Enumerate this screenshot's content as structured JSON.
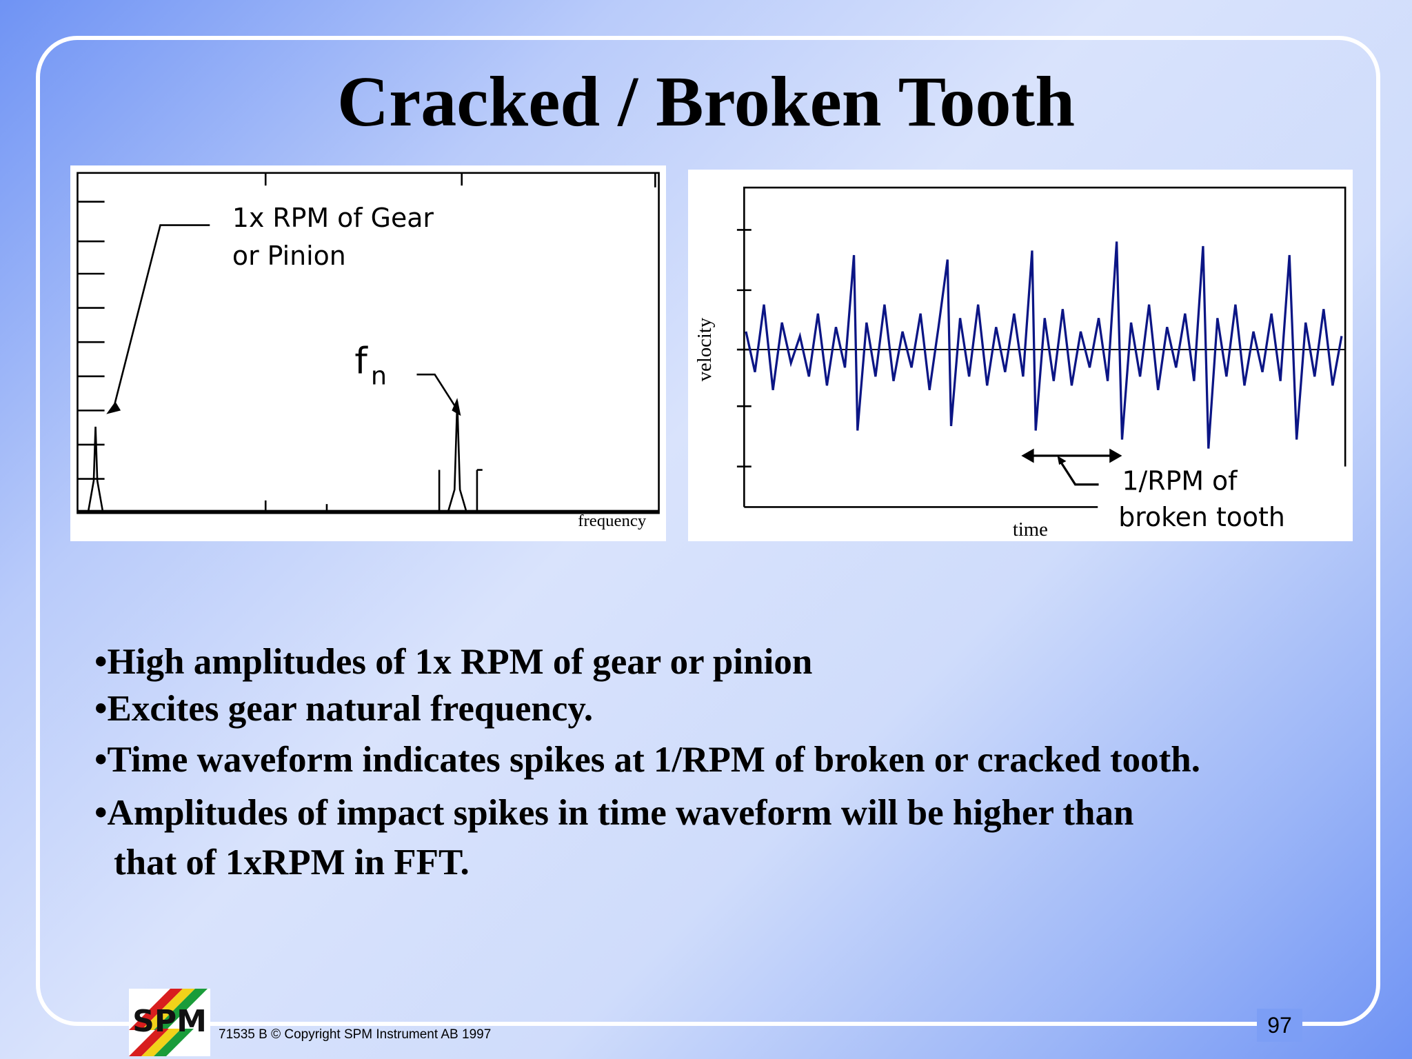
{
  "title": "Cracked / Broken Tooth",
  "figures": [
    {
      "annotations": [
        "1x RPM of Gear",
        "or Pinion"
      ],
      "peak_label": "f",
      "peak_label_subscript": "n",
      "x_axis_label": "frequency"
    },
    {
      "y_axis_label": "velocity",
      "x_axis_label": "time",
      "annotations": [
        "1/RPM of",
        "broken tooth"
      ]
    }
  ],
  "bullets": [
    [
      "•High amplitudes of 1x RPM of gear or pinion"
    ],
    [
      "•Excites gear natural frequency."
    ],
    [
      "•Time waveform indicates spikes at 1/RPM of broken or cracked tooth."
    ],
    [
      "•Amplitudes of impact spikes in time waveform will be higher than",
      "that of 1xRPM in FFT."
    ]
  ],
  "footer": {
    "logo": "SPM",
    "copyright": "71535 B  © Copyright SPM Instrument AB 1997",
    "page_number": "97"
  }
}
